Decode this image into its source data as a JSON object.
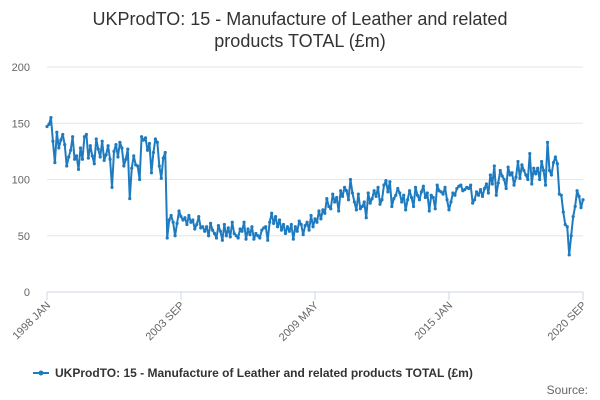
{
  "chart_data": {
    "type": "line",
    "title": "UKProdTO: 15 - Manufacture of Leather and related products TOTAL (£m)",
    "title_lines": [
      "UKProdTO: 15 - Manufacture of Leather and related",
      "products TOTAL (£m)"
    ],
    "xlabel": "",
    "ylabel": "",
    "ylim": [
      0,
      200
    ],
    "yticks": [
      0,
      50,
      100,
      150,
      200
    ],
    "xlim": [
      "1998-01",
      "2020-09"
    ],
    "xticks": [
      {
        "label": "1998 JAN",
        "date": "1998-01"
      },
      {
        "label": "2003 SEP",
        "date": "2003-09"
      },
      {
        "label": "2009 MAY",
        "date": "2009-05"
      },
      {
        "label": "2015 JAN",
        "date": "2015-01"
      },
      {
        "label": "2020 SEP",
        "date": "2020-09"
      }
    ],
    "grid": true,
    "legend_position": "bottom",
    "color": "#1f7bbf",
    "series": [
      {
        "name": "UKProdTO: 15 - Manufacture of Leather and related products TOTAL (£m)",
        "x": [
          "1998-01",
          "1998-02",
          "1998-03",
          "1998-04",
          "1998-05",
          "1998-06",
          "1998-07",
          "1998-08",
          "1998-09",
          "1998-10",
          "1998-11",
          "1998-12",
          "1999-01",
          "1999-02",
          "1999-03",
          "1999-04",
          "1999-05",
          "1999-06",
          "1999-07",
          "1999-08",
          "1999-09",
          "1999-10",
          "1999-11",
          "1999-12",
          "2000-01",
          "2000-02",
          "2000-03",
          "2000-04",
          "2000-05",
          "2000-06",
          "2000-07",
          "2000-08",
          "2000-09",
          "2000-10",
          "2000-11",
          "2000-12",
          "2001-01",
          "2001-02",
          "2001-03",
          "2001-04",
          "2001-05",
          "2001-06",
          "2001-07",
          "2001-08",
          "2001-09",
          "2001-10",
          "2001-11",
          "2001-12",
          "2002-01",
          "2002-02",
          "2002-03",
          "2002-04",
          "2002-05",
          "2002-06",
          "2002-07",
          "2002-08",
          "2002-09",
          "2002-10",
          "2002-11",
          "2002-12",
          "2003-01",
          "2003-02",
          "2003-03",
          "2003-04",
          "2003-05",
          "2003-06",
          "2003-07",
          "2003-08",
          "2003-09",
          "2003-10",
          "2003-11",
          "2003-12",
          "2004-01",
          "2004-02",
          "2004-03",
          "2004-04",
          "2004-05",
          "2004-06",
          "2004-07",
          "2004-08",
          "2004-09",
          "2004-10",
          "2004-11",
          "2004-12",
          "2005-01",
          "2005-02",
          "2005-03",
          "2005-04",
          "2005-05",
          "2005-06",
          "2005-07",
          "2005-08",
          "2005-09",
          "2005-10",
          "2005-11",
          "2005-12",
          "2006-01",
          "2006-02",
          "2006-03",
          "2006-04",
          "2006-05",
          "2006-06",
          "2006-07",
          "2006-08",
          "2006-09",
          "2006-10",
          "2006-11",
          "2006-12",
          "2007-01",
          "2007-02",
          "2007-03",
          "2007-04",
          "2007-05",
          "2007-06",
          "2007-07",
          "2007-08",
          "2007-09",
          "2007-10",
          "2007-11",
          "2007-12",
          "2008-01",
          "2008-02",
          "2008-03",
          "2008-04",
          "2008-05",
          "2008-06",
          "2008-07",
          "2008-08",
          "2008-09",
          "2008-10",
          "2008-11",
          "2008-12",
          "2009-01",
          "2009-02",
          "2009-03",
          "2009-04",
          "2009-05",
          "2009-06",
          "2009-07",
          "2009-08",
          "2009-09",
          "2009-10",
          "2009-11",
          "2009-12",
          "2010-01",
          "2010-02",
          "2010-03",
          "2010-04",
          "2010-05",
          "2010-06",
          "2010-07",
          "2010-08",
          "2010-09",
          "2010-10",
          "2010-11",
          "2010-12",
          "2011-01",
          "2011-02",
          "2011-03",
          "2011-04",
          "2011-05",
          "2011-06",
          "2011-07",
          "2011-08",
          "2011-09",
          "2011-10",
          "2011-11",
          "2011-12",
          "2012-01",
          "2012-02",
          "2012-03",
          "2012-04",
          "2012-05",
          "2012-06",
          "2012-07",
          "2012-08",
          "2012-09",
          "2012-10",
          "2012-11",
          "2012-12",
          "2013-01",
          "2013-02",
          "2013-03",
          "2013-04",
          "2013-05",
          "2013-06",
          "2013-07",
          "2013-08",
          "2013-09",
          "2013-10",
          "2013-11",
          "2013-12",
          "2014-01",
          "2014-02",
          "2014-03",
          "2014-04",
          "2014-05",
          "2014-06",
          "2014-07",
          "2014-08",
          "2014-09",
          "2014-10",
          "2014-11",
          "2014-12",
          "2015-01",
          "2015-02",
          "2015-03",
          "2015-04",
          "2015-05",
          "2015-06",
          "2015-07",
          "2015-08",
          "2015-09",
          "2015-10",
          "2015-11",
          "2015-12",
          "2016-01",
          "2016-02",
          "2016-03",
          "2016-04",
          "2016-05",
          "2016-06",
          "2016-07",
          "2016-08",
          "2016-09",
          "2016-10",
          "2016-11",
          "2016-12",
          "2017-01",
          "2017-02",
          "2017-03",
          "2017-04",
          "2017-05",
          "2017-06",
          "2017-07",
          "2017-08",
          "2017-09",
          "2017-10",
          "2017-11",
          "2017-12",
          "2018-01",
          "2018-02",
          "2018-03",
          "2018-04",
          "2018-05",
          "2018-06",
          "2018-07",
          "2018-08",
          "2018-09",
          "2018-10",
          "2018-11",
          "2018-12",
          "2019-01",
          "2019-02",
          "2019-03",
          "2019-04",
          "2019-05",
          "2019-06",
          "2019-07",
          "2019-08",
          "2019-09",
          "2019-10",
          "2019-11",
          "2019-12",
          "2020-01",
          "2020-02",
          "2020-03",
          "2020-04",
          "2020-05",
          "2020-06",
          "2020-07",
          "2020-08",
          "2020-09"
        ],
        "values": [
          147,
          149,
          155,
          134,
          115,
          142,
          128,
          135,
          140,
          131,
          112,
          120,
          126,
          138,
          118,
          121,
          109,
          128,
          118,
          138,
          140,
          119,
          130,
          121,
          114,
          136,
          127,
          120,
          134,
          117,
          122,
          130,
          118,
          93,
          125,
          131,
          120,
          133,
          128,
          112,
          118,
          127,
          83,
          110,
          121,
          113,
          112,
          100,
          138,
          135,
          137,
          126,
          132,
          106,
          124,
          136,
          133,
          112,
          101,
          119,
          124,
          48,
          64,
          68,
          62,
          50,
          61,
          72,
          67,
          64,
          66,
          60,
          68,
          62,
          64,
          56,
          60,
          67,
          57,
          58,
          54,
          58,
          50,
          61,
          55,
          52,
          48,
          59,
          54,
          46,
          60,
          50,
          57,
          49,
          62,
          52,
          50,
          48,
          56,
          54,
          62,
          47,
          56,
          51,
          58,
          47,
          52,
          50,
          48,
          55,
          57,
          58,
          46,
          62,
          70,
          61,
          67,
          58,
          64,
          55,
          60,
          52,
          58,
          54,
          60,
          47,
          58,
          54,
          63,
          60,
          51,
          59,
          62,
          55,
          68,
          58,
          65,
          62,
          72,
          65,
          73,
          70,
          83,
          76,
          74,
          87,
          80,
          84,
          72,
          90,
          85,
          93,
          90,
          82,
          100,
          88,
          80,
          73,
          87,
          74,
          76,
          80,
          66,
          88,
          79,
          83,
          90,
          85,
          93,
          78,
          82,
          95,
          99,
          89,
          98,
          76,
          83,
          86,
          92,
          88,
          80,
          86,
          73,
          82,
          90,
          84,
          76,
          93,
          86,
          82,
          89,
          94,
          84,
          88,
          72,
          86,
          84,
          74,
          95,
          90,
          89,
          87,
          93,
          82,
          73,
          80,
          88,
          86,
          92,
          94,
          95,
          90,
          91,
          93,
          92,
          95,
          79,
          82,
          89,
          86,
          91,
          85,
          92,
          96,
          88,
          104,
          96,
          112,
          86,
          97,
          108,
          103,
          100,
          92,
          111,
          104,
          106,
          95,
          102,
          116,
          101,
          113,
          108,
          104,
          100,
          123,
          96,
          110,
          105,
          110,
          100,
          116,
          108,
          95,
          133,
          108,
          104,
          115,
          120,
          114,
          87,
          86,
          71,
          60,
          58,
          33,
          50,
          67,
          76,
          90,
          85,
          75,
          82
        ]
      }
    ]
  },
  "legend": {
    "label": "UKProdTO: 15 - Manufacture of Leather and related products TOTAL (£m)"
  },
  "footer": {
    "source_label": "Source:"
  }
}
